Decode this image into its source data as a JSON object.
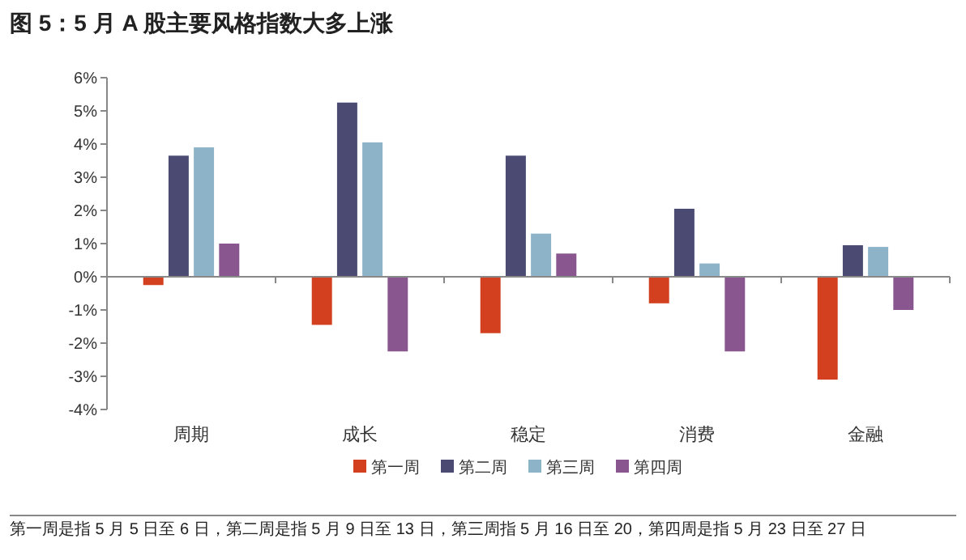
{
  "chart_data": {
    "type": "bar",
    "title": "图 5：5 月 A 股主要风格指数大多上涨",
    "categories": [
      "周期",
      "成长",
      "稳定",
      "消费",
      "金融"
    ],
    "series": [
      {
        "name": "第一周",
        "color": "#d2401f",
        "values": [
          -0.25,
          -1.45,
          -1.7,
          -0.8,
          -3.1
        ]
      },
      {
        "name": "第二周",
        "color": "#4a4a72",
        "values": [
          3.65,
          5.25,
          3.65,
          2.05,
          0.95
        ]
      },
      {
        "name": "第三周",
        "color": "#8db3c9",
        "values": [
          3.9,
          4.05,
          1.3,
          0.4,
          0.9
        ]
      },
      {
        "name": "第四周",
        "color": "#8a5690",
        "values": [
          1.0,
          -2.25,
          0.7,
          -2.25,
          -1.0
        ]
      }
    ],
    "ylim": [
      -4,
      6
    ],
    "yticks": [
      {
        "value": -4,
        "label": "-4%"
      },
      {
        "value": -3,
        "label": "-3%"
      },
      {
        "value": -2,
        "label": "-2%"
      },
      {
        "value": -1,
        "label": "-1%"
      },
      {
        "value": 0,
        "label": "0%"
      },
      {
        "value": 1,
        "label": "1%"
      },
      {
        "value": 2,
        "label": "2%"
      },
      {
        "value": 3,
        "label": "3%"
      },
      {
        "value": 4,
        "label": "4%"
      },
      {
        "value": 5,
        "label": "5%"
      },
      {
        "value": 6,
        "label": "6%"
      }
    ],
    "legend": "bottom",
    "annotations": [
      "第一周是指 5 月 5 日至 6 日，第二周是指 5 月 9 日至 13 日，第三周指 5 月 16 日至 20，第四周是指 5 月 23 日至 27 日"
    ]
  }
}
